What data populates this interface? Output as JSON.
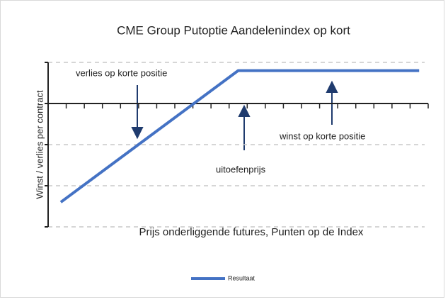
{
  "chart_data": {
    "type": "line",
    "title": "CME Group Putoptie Aandelenindex op kort",
    "y_label": "Winst / verlies per contract",
    "x_label": "Prijs onderliggende futures, Punten op de Index",
    "annotations": [
      {
        "text": "verlies op korte positie"
      },
      {
        "text": "winst op korte positie"
      },
      {
        "text": "uitoefenprijs"
      }
    ],
    "x": [
      0.7,
      10.5,
      20.5
    ],
    "series": [
      {
        "name": "Resultaat",
        "color": "#4472c4",
        "values": [
          -2.4,
          0.8,
          0.8
        ]
      }
    ],
    "xlim": [
      0,
      21
    ],
    "xticks": [
      0,
      1,
      2,
      3,
      4,
      5,
      6,
      7,
      8,
      9,
      10,
      11,
      12,
      13,
      14,
      15,
      16,
      17,
      18,
      19,
      20,
      21
    ],
    "ylim": [
      -3,
      1
    ],
    "yticks": [
      -3,
      -2,
      -1,
      0,
      1
    ],
    "grid": true,
    "legend": "bottom"
  }
}
